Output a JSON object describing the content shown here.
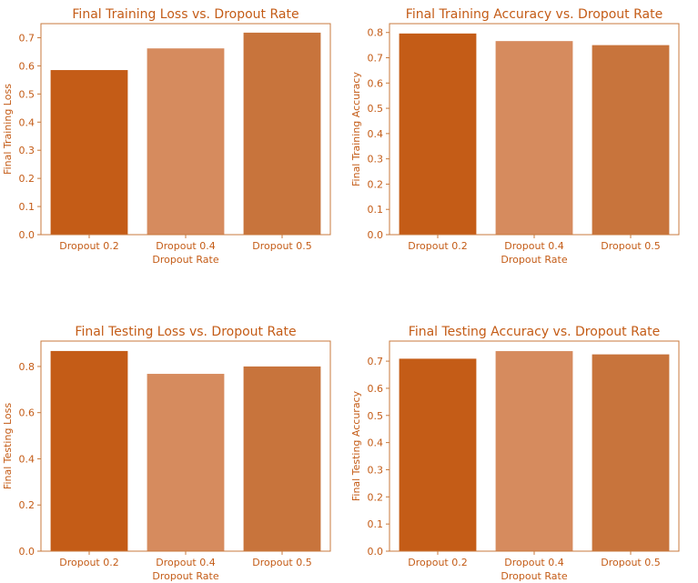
{
  "style": {
    "text_color": "#c45c17",
    "axis_color": "#c87a3c",
    "bar_colors": [
      "#c45c17",
      "#d68b5e",
      "#c8743c"
    ]
  },
  "chart_data": [
    {
      "type": "bar",
      "title": "Final Training Loss vs. Dropout Rate",
      "xlabel": "Dropout Rate",
      "ylabel": "Final Training Loss",
      "categories": [
        "Dropout 0.2",
        "Dropout 0.4",
        "Dropout 0.5"
      ],
      "values": [
        0.585,
        0.662,
        0.718
      ],
      "ylim": [
        0,
        0.75
      ],
      "yticks": [
        0.0,
        0.1,
        0.2,
        0.3,
        0.4,
        0.5,
        0.6,
        0.7
      ],
      "ytick_labels": [
        "0.0",
        "0.1",
        "0.2",
        "0.3",
        "0.4",
        "0.5",
        "0.6",
        "0.7"
      ],
      "grid": false
    },
    {
      "type": "bar",
      "title": "Final Training Accuracy vs. Dropout Rate",
      "xlabel": "Dropout Rate",
      "ylabel": "Final Training Accuracy",
      "categories": [
        "Dropout 0.2",
        "Dropout 0.4",
        "Dropout 0.5"
      ],
      "values": [
        0.796,
        0.766,
        0.75
      ],
      "ylim": [
        0,
        0.835
      ],
      "yticks": [
        0.0,
        0.1,
        0.2,
        0.3,
        0.4,
        0.5,
        0.6,
        0.7,
        0.8
      ],
      "ytick_labels": [
        "0.0",
        "0.1",
        "0.2",
        "0.3",
        "0.4",
        "0.5",
        "0.6",
        "0.7",
        "0.8"
      ],
      "grid": false
    },
    {
      "type": "bar",
      "title": "Final Testing Loss vs. Dropout Rate",
      "xlabel": "Dropout Rate",
      "ylabel": "Final Testing Loss",
      "categories": [
        "Dropout 0.2",
        "Dropout 0.4",
        "Dropout 0.5"
      ],
      "values": [
        0.867,
        0.768,
        0.8
      ],
      "ylim": [
        0,
        0.91
      ],
      "yticks": [
        0.0,
        0.2,
        0.4,
        0.6,
        0.8
      ],
      "ytick_labels": [
        "0.0",
        "0.2",
        "0.4",
        "0.6",
        "0.8"
      ],
      "grid": false
    },
    {
      "type": "bar",
      "title": "Final Testing Accuracy vs. Dropout Rate",
      "xlabel": "Dropout Rate",
      "ylabel": "Final Testing Accuracy",
      "categories": [
        "Dropout 0.2",
        "Dropout 0.4",
        "Dropout 0.5"
      ],
      "values": [
        0.709,
        0.737,
        0.725
      ],
      "ylim": [
        0,
        0.774
      ],
      "yticks": [
        0.0,
        0.1,
        0.2,
        0.3,
        0.4,
        0.5,
        0.6,
        0.7
      ],
      "ytick_labels": [
        "0.0",
        "0.1",
        "0.2",
        "0.3",
        "0.4",
        "0.5",
        "0.6",
        "0.7"
      ],
      "grid": false
    }
  ]
}
